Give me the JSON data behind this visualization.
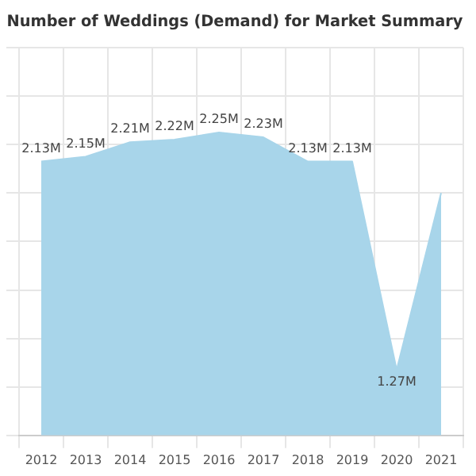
{
  "chart_data": {
    "type": "area",
    "title": "Number of Weddings (Demand) for Market Summary",
    "categories": [
      "2012",
      "2013",
      "2014",
      "2015",
      "2016",
      "2017",
      "2018",
      "2019",
      "2020",
      "2021"
    ],
    "values": [
      2.13,
      2.15,
      2.21,
      2.22,
      2.25,
      2.23,
      2.13,
      2.13,
      1.27,
      2.0
    ],
    "value_labels": [
      "2.13M",
      "2.15M",
      "2.21M",
      "2.22M",
      "2.25M",
      "2.23M",
      "2.13M",
      "2.13M",
      "1.27M",
      null
    ],
    "color": "#a8d5ea",
    "ylim": [
      1.0,
      2.6
    ],
    "yticks": [
      {
        "value": 1.0,
        "label": null
      },
      {
        "value": 1.2,
        "label": null
      },
      {
        "value": 1.4,
        "label": null
      },
      {
        "value": 1.6,
        "label": null
      },
      {
        "value": 1.8,
        "label": null
      },
      {
        "value": 2.0,
        "label": null
      },
      {
        "value": 2.2,
        "label": null
      },
      {
        "value": 2.4,
        "label": null
      },
      {
        "value": 2.6,
        "label": null
      }
    ],
    "tick_labels": "x",
    "grid": true,
    "legend": false,
    "marker": "none"
  }
}
